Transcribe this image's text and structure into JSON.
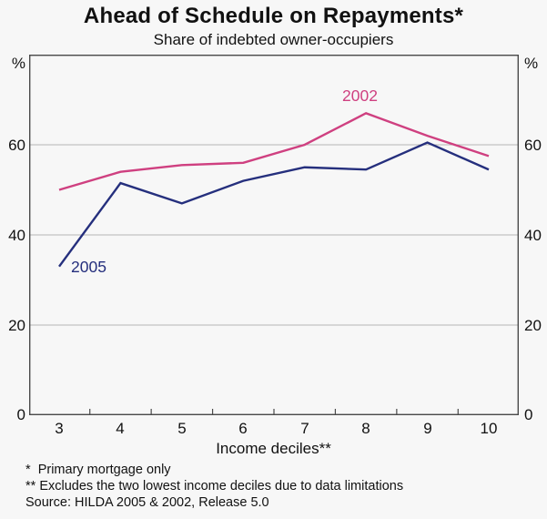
{
  "header": {
    "title": "Ahead of Schedule on Repayments*",
    "subtitle": "Share of indebted owner-occupiers"
  },
  "chart_data": {
    "type": "line",
    "title": "Ahead of Schedule on Repayments*",
    "subtitle": "Share of indebted owner-occupiers",
    "unit": "%",
    "xlabel": "Income deciles**",
    "categories": [
      "3",
      "4",
      "5",
      "6",
      "7",
      "8",
      "9",
      "10"
    ],
    "yticks": [
      "0",
      "20",
      "40",
      "60"
    ],
    "ylim": [
      0,
      80
    ],
    "grid_values": [
      20,
      40,
      60
    ],
    "legend_position": "inline-labels",
    "frame_color": "#4a4a4a",
    "grid_color": "#b5b5b5",
    "series": [
      {
        "name": "2002",
        "color": "#cf4080",
        "values": [
          50,
          54,
          55.5,
          56,
          60,
          67,
          62,
          57.5
        ]
      },
      {
        "name": "2005",
        "color": "#252f7d",
        "values": [
          33,
          51.5,
          47,
          52,
          55,
          54.5,
          60.5,
          54.5
        ]
      }
    ]
  },
  "footnotes": {
    "line1": "*  Primary mortgage only",
    "line2": "** Excludes the two lowest income deciles due to data limitations",
    "line3": "Source: HILDA 2005 & 2002, Release 5.0"
  }
}
